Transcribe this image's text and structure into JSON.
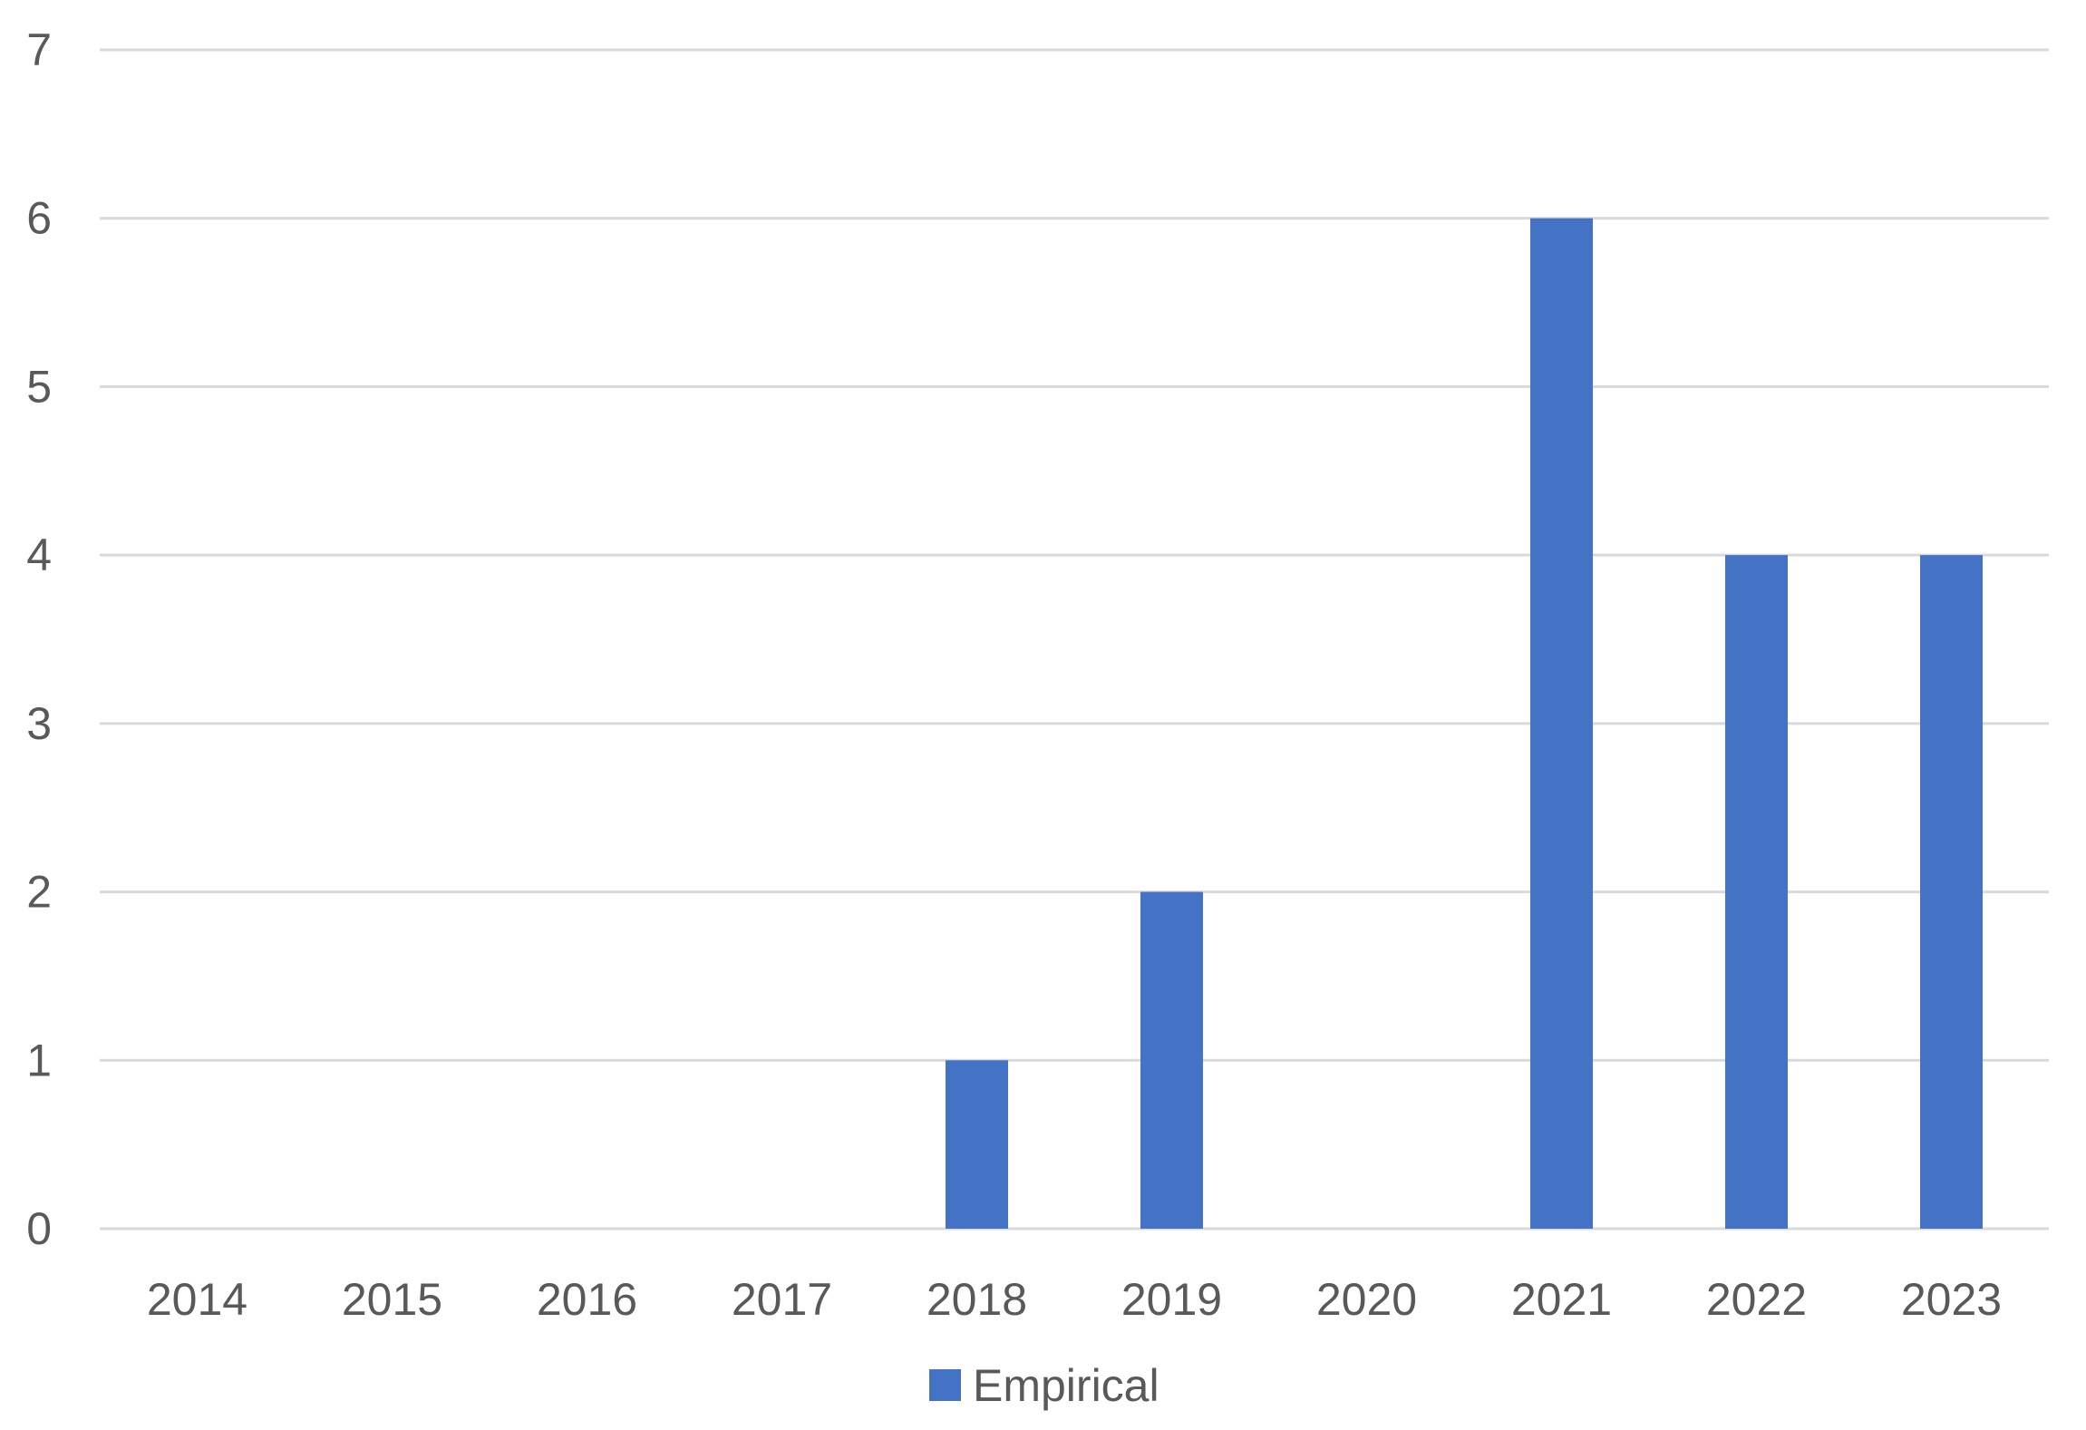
{
  "colors": {
    "bar": "#4472C4",
    "gridline": "#D9D9D9",
    "axis_text": "#595959",
    "background": "#FFFFFF"
  },
  "legend": {
    "label": "Empirical",
    "swatch_color": "#4472C4",
    "position": "bottom-center"
  },
  "chart_data": {
    "type": "bar",
    "title": "",
    "xlabel": "",
    "ylabel": "",
    "categories": [
      "2014",
      "2015",
      "2016",
      "2017",
      "2018",
      "2019",
      "2020",
      "2021",
      "2022",
      "2023"
    ],
    "series": [
      {
        "name": "Empirical",
        "color": "#4472C4",
        "values": [
          0,
          0,
          0,
          0,
          1,
          2,
          0,
          6,
          4,
          4
        ]
      }
    ],
    "ylim": [
      0,
      7
    ],
    "yticks": [
      0,
      1,
      2,
      3,
      4,
      5,
      6,
      7
    ],
    "grid": true,
    "gridlines": "horizontal",
    "legend_position": "bottom-center"
  }
}
